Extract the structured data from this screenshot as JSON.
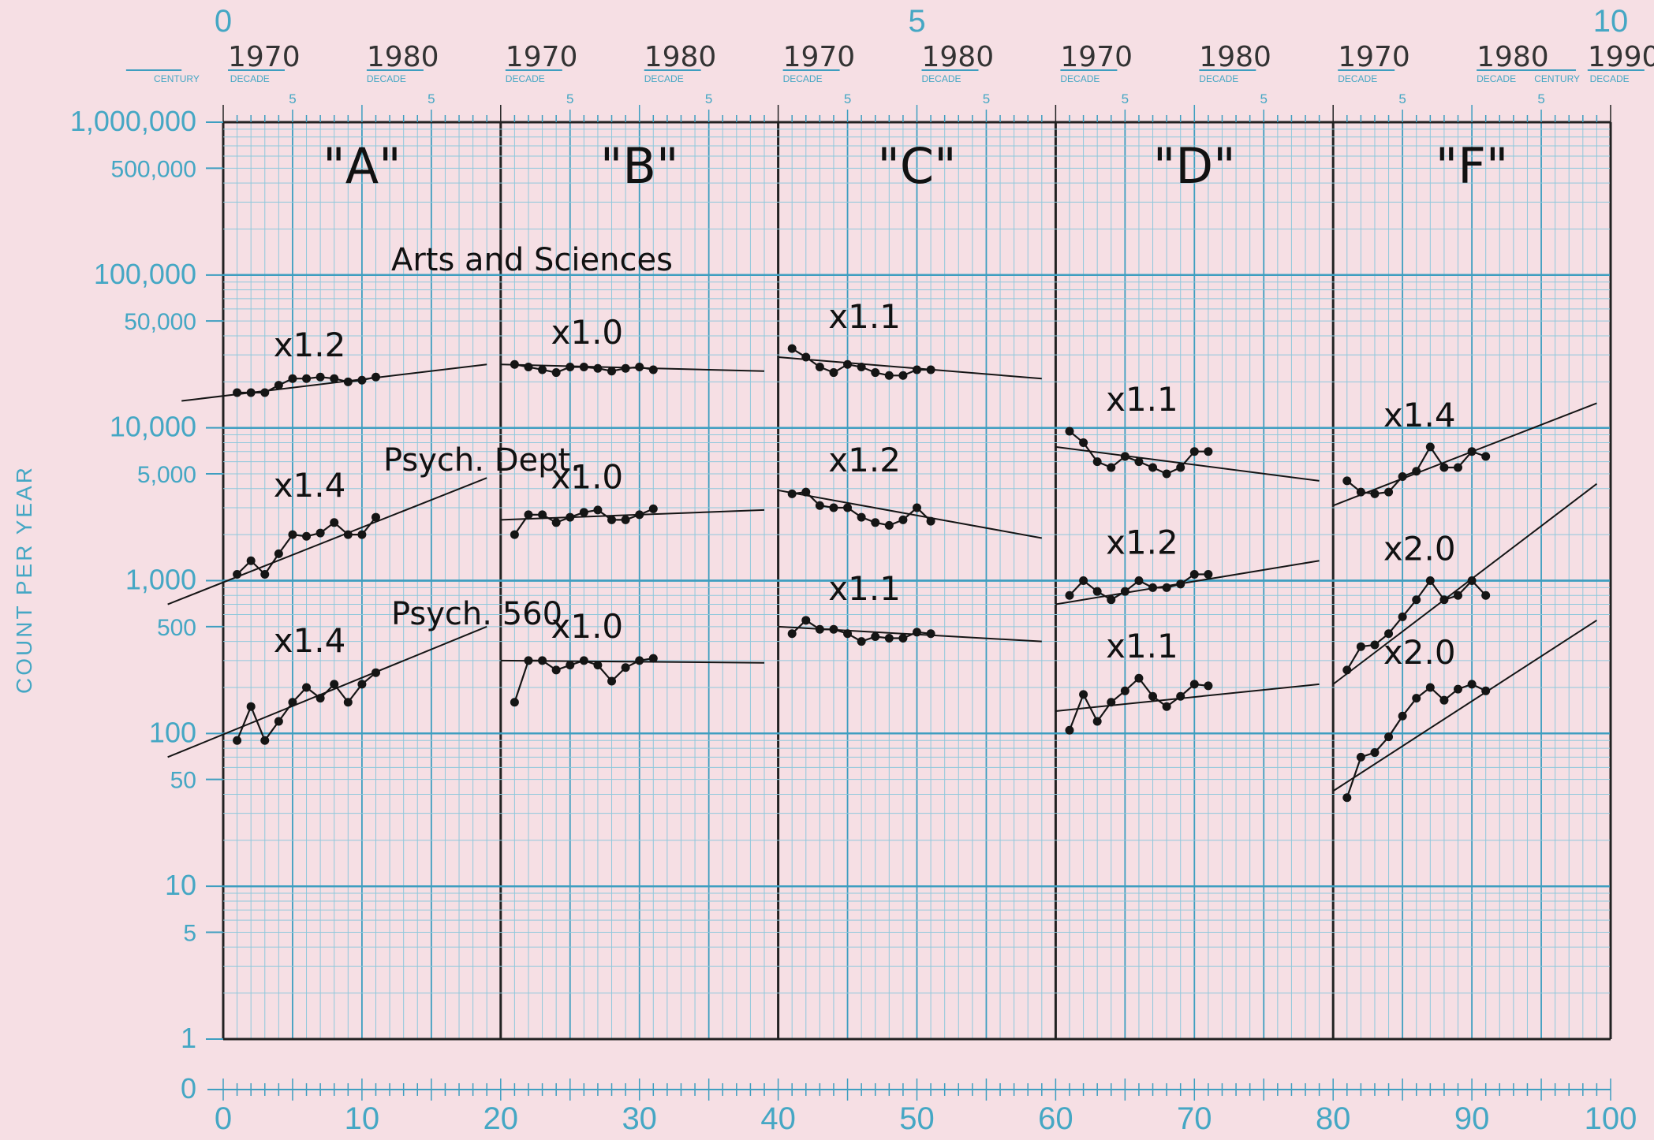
{
  "chart_data": {
    "type": "line",
    "scale": "semi-log (log y)",
    "ylabel": "COUNT PER YEAR",
    "y_tick_labels": [
      "1,000,000",
      "500,000",
      "100,000",
      "50,000",
      "10,000",
      "5,000",
      "1,000",
      "500",
      "100",
      "50",
      "10",
      "5",
      "1",
      "0"
    ],
    "x_tick_labels": [
      "0",
      "10",
      "20",
      "30",
      "40",
      "50",
      "60",
      "70",
      "80",
      "90",
      "100"
    ],
    "top_numbers": [
      "0",
      "5",
      "10"
    ],
    "top_decade_labels": [
      "1970",
      "1980",
      "1970",
      "1980",
      "1970",
      "1980",
      "1970",
      "1980",
      "1970",
      "1980",
      "1990"
    ],
    "top_small_labels": [
      "CENTURY",
      "DECADE",
      "DECADE",
      "DECADE",
      "DECADE",
      "DECADE",
      "DECADE",
      "DECADE",
      "DECADE",
      "DECADE",
      "DECADE",
      "CENTURY",
      "DECADE"
    ],
    "top_five": "5",
    "panels": [
      {
        "label": "\"A\"",
        "x_range": [
          0,
          20
        ]
      },
      {
        "label": "\"B\"",
        "x_range": [
          20,
          40
        ]
      },
      {
        "label": "\"C\"",
        "x_range": [
          40,
          60
        ]
      },
      {
        "label": "\"D\"",
        "x_range": [
          60,
          80
        ]
      },
      {
        "label": "\"F\"",
        "x_range": [
          80,
          100
        ]
      }
    ],
    "annotations": {
      "arts_sciences": "Arts and Sciences",
      "psych_dept": "Psych. Dept.",
      "psych_560": "Psych. 560"
    },
    "series": [
      {
        "name": "Arts and Sciences",
        "panel": 0,
        "x": [
          1,
          2,
          3,
          4,
          5,
          6,
          7,
          8,
          9,
          10,
          11
        ],
        "y": [
          17000,
          17000,
          17000,
          19000,
          21000,
          21000,
          21500,
          21000,
          20000,
          20500,
          21500
        ],
        "celeration_label": "x1.2",
        "trend": [
          [
            -3,
            15000
          ],
          [
            19,
            26000
          ]
        ]
      },
      {
        "name": "Arts and Sciences",
        "panel": 1,
        "x": [
          21,
          22,
          23,
          24,
          25,
          26,
          27,
          28,
          29,
          30,
          31
        ],
        "y": [
          26000,
          25000,
          24000,
          23000,
          25000,
          25000,
          24500,
          23500,
          24500,
          25000,
          24000
        ],
        "celeration_label": "x1.0",
        "trend": [
          [
            20,
            26000
          ],
          [
            39,
            23500
          ]
        ]
      },
      {
        "name": "Arts and Sciences",
        "panel": 2,
        "x": [
          41,
          42,
          43,
          44,
          45,
          46,
          47,
          48,
          49,
          50,
          51
        ],
        "y": [
          33000,
          29000,
          25000,
          23000,
          26000,
          25000,
          23000,
          22000,
          22000,
          24000,
          24000
        ],
        "celeration_label": "x1.1",
        "trend": [
          [
            40,
            29000
          ],
          [
            59,
            21000
          ]
        ]
      },
      {
        "name": "Arts and Sciences",
        "panel": 3,
        "x": [
          61,
          62,
          63,
          64,
          65,
          66,
          67,
          68,
          69,
          70,
          71
        ],
        "y": [
          9500,
          8000,
          6000,
          5500,
          6500,
          6000,
          5500,
          5000,
          5500,
          7000,
          7000
        ],
        "celeration_label": "x1.1",
        "trend": [
          [
            60,
            7500
          ],
          [
            79,
            4500
          ]
        ]
      },
      {
        "name": "Arts and Sciences",
        "panel": 4,
        "x": [
          81,
          82,
          83,
          84,
          85,
          86,
          87,
          88,
          89,
          90,
          91
        ],
        "y": [
          4500,
          3800,
          3700,
          3800,
          4800,
          5200,
          7500,
          5500,
          5500,
          7000,
          6500
        ],
        "celeration_label": "x1.4",
        "trend": [
          [
            80,
            3100
          ],
          [
            99,
            14500
          ]
        ]
      },
      {
        "name": "Psych. Dept.",
        "panel": 0,
        "x": [
          1,
          2,
          3,
          4,
          5,
          6,
          7,
          8,
          9,
          10,
          11
        ],
        "y": [
          1100,
          1350,
          1100,
          1500,
          2000,
          1950,
          2050,
          2400,
          2000,
          2000,
          2600
        ],
        "celeration_label": "x1.4",
        "trend": [
          [
            -4,
            700
          ],
          [
            19,
            4700
          ]
        ]
      },
      {
        "name": "Psych. Dept.",
        "panel": 1,
        "x": [
          21,
          22,
          23,
          24,
          25,
          26,
          27,
          28,
          29,
          30,
          31
        ],
        "y": [
          2000,
          2700,
          2700,
          2400,
          2600,
          2800,
          2900,
          2500,
          2500,
          2700,
          2950
        ],
        "celeration_label": "x1.0",
        "trend": [
          [
            20,
            2500
          ],
          [
            39,
            2900
          ]
        ]
      },
      {
        "name": "Psych. Dept.",
        "panel": 2,
        "x": [
          41,
          42,
          43,
          44,
          45,
          46,
          47,
          48,
          49,
          50,
          51
        ],
        "y": [
          3700,
          3800,
          3100,
          3000,
          3000,
          2600,
          2400,
          2300,
          2500,
          3000,
          2450
        ],
        "celeration_label": "x1.2",
        "trend": [
          [
            40,
            3900
          ],
          [
            59,
            1900
          ]
        ]
      },
      {
        "name": "Psych. Dept.",
        "panel": 3,
        "x": [
          61,
          62,
          63,
          64,
          65,
          66,
          67,
          68,
          69,
          70,
          71
        ],
        "y": [
          800,
          1000,
          850,
          750,
          850,
          1000,
          900,
          900,
          950,
          1100,
          1100
        ],
        "celeration_label": "x1.2",
        "trend": [
          [
            60,
            700
          ],
          [
            79,
            1350
          ]
        ]
      },
      {
        "name": "Psych. Dept.",
        "panel": 4,
        "x": [
          81,
          82,
          83,
          84,
          85,
          86,
          87,
          88,
          89,
          90,
          91
        ],
        "y": [
          260,
          370,
          380,
          450,
          580,
          750,
          1000,
          750,
          800,
          1000,
          800
        ],
        "celeration_label": "x2.0",
        "trend": [
          [
            80,
            210
          ],
          [
            99,
            4300
          ]
        ]
      },
      {
        "name": "Psych. 560",
        "panel": 0,
        "x": [
          1,
          2,
          3,
          4,
          5,
          6,
          7,
          8,
          9,
          10,
          11
        ],
        "y": [
          90,
          150,
          90,
          120,
          160,
          200,
          170,
          210,
          160,
          210,
          250
        ],
        "celeration_label": "x1.4",
        "trend": [
          [
            -4,
            70
          ],
          [
            19,
            500
          ]
        ]
      },
      {
        "name": "Psych. 560",
        "panel": 1,
        "x": [
          21,
          22,
          23,
          24,
          25,
          26,
          27,
          28,
          29,
          30,
          31
        ],
        "y": [
          160,
          300,
          300,
          260,
          280,
          300,
          280,
          220,
          270,
          300,
          310
        ],
        "celeration_label": "x1.0",
        "trend": [
          [
            20,
            300
          ],
          [
            39,
            290
          ]
        ]
      },
      {
        "name": "Psych. 560",
        "panel": 2,
        "x": [
          41,
          42,
          43,
          44,
          45,
          46,
          47,
          48,
          49,
          50,
          51
        ],
        "y": [
          450,
          550,
          480,
          480,
          450,
          400,
          430,
          420,
          420,
          460,
          450
        ],
        "celeration_label": "x1.1",
        "trend": [
          [
            40,
            500
          ],
          [
            59,
            400
          ]
        ]
      },
      {
        "name": "Psych. 560",
        "panel": 3,
        "x": [
          61,
          62,
          63,
          64,
          65,
          66,
          67,
          68,
          69,
          70,
          71
        ],
        "y": [
          105,
          180,
          120,
          160,
          190,
          230,
          175,
          150,
          175,
          210,
          205
        ],
        "celeration_label": "x1.1",
        "trend": [
          [
            60,
            140
          ],
          [
            79,
            210
          ]
        ]
      },
      {
        "name": "Psych. 560",
        "panel": 4,
        "x": [
          81,
          82,
          83,
          84,
          85,
          86,
          87,
          88,
          89,
          90,
          91
        ],
        "y": [
          38,
          70,
          75,
          95,
          130,
          170,
          200,
          165,
          195,
          210,
          190
        ],
        "celeration_label": "x2.0",
        "trend": [
          [
            80,
            42
          ],
          [
            99,
            550
          ]
        ]
      }
    ]
  }
}
